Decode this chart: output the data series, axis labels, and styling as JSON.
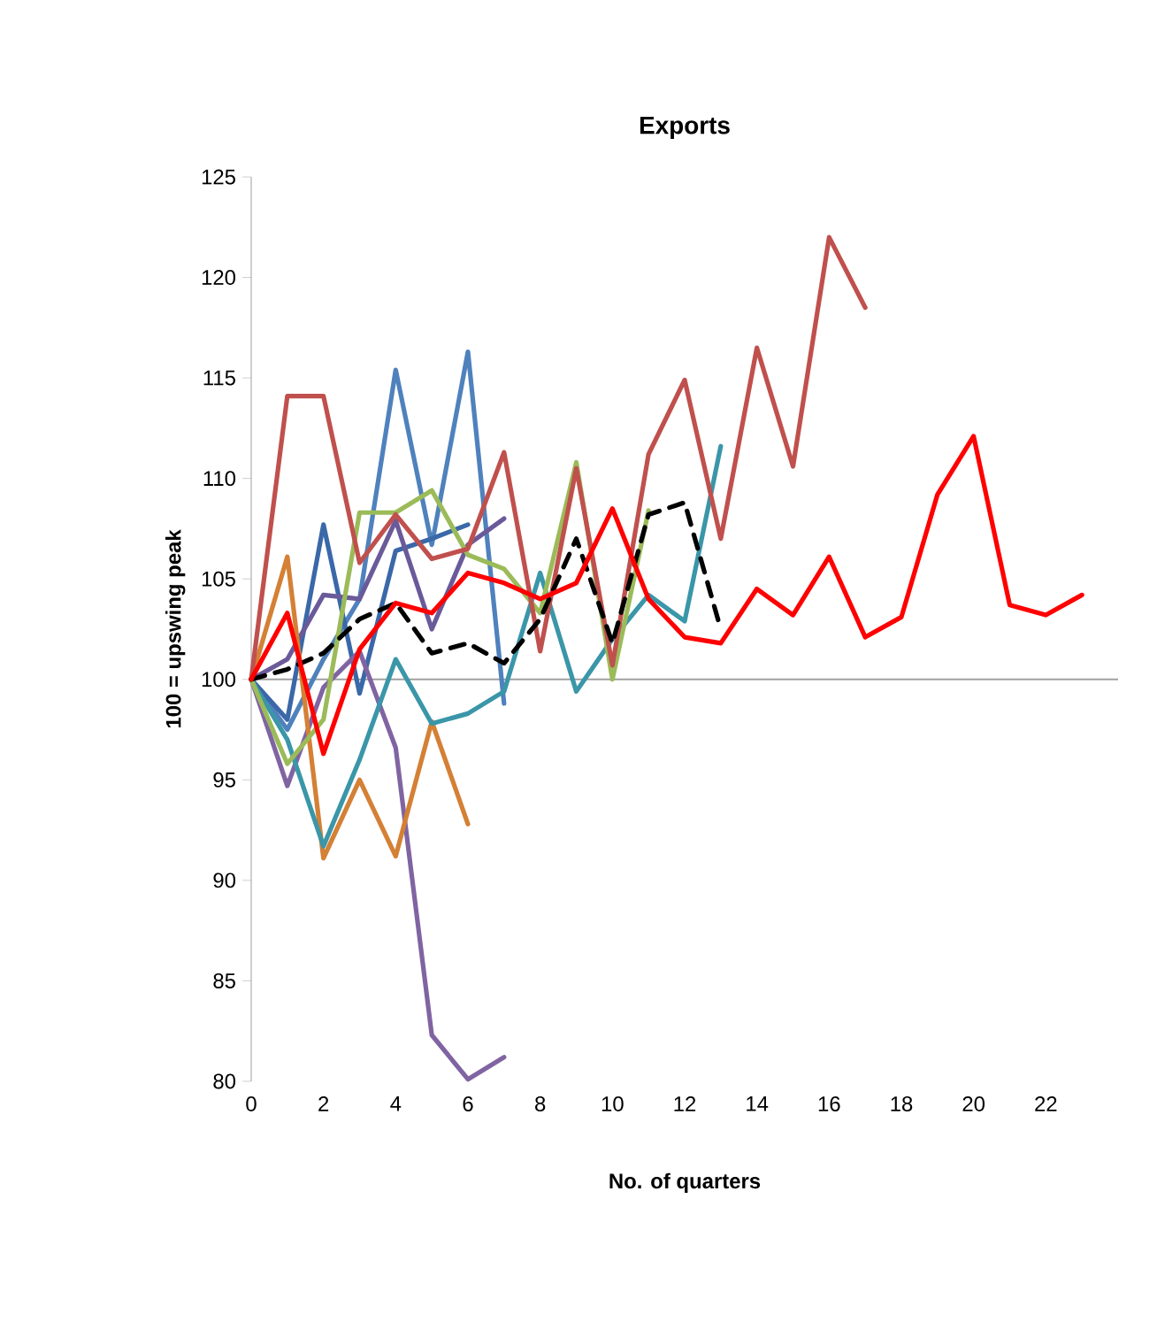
{
  "chart_data": {
    "type": "line",
    "title": "Exports",
    "xlabel": "No. of quarters",
    "ylabel": "100 = upswing peak",
    "x": [
      0,
      1,
      2,
      3,
      4,
      5,
      6,
      7,
      8,
      9,
      10,
      11,
      12,
      13,
      14,
      15,
      16,
      17,
      18,
      19,
      20,
      21,
      22,
      23
    ],
    "xlim": [
      0,
      24
    ],
    "xticks": [
      0,
      2,
      4,
      6,
      8,
      10,
      12,
      14,
      16,
      18,
      20,
      22
    ],
    "ylim": [
      80,
      125
    ],
    "yticks": [
      80,
      85,
      90,
      95,
      100,
      105,
      110,
      115,
      120,
      125
    ],
    "ref_lines": [
      {
        "axis": "y",
        "value": 100,
        "color": "#a0a0a0"
      }
    ],
    "series": [
      {
        "color": "#4f81bd",
        "values": [
          100,
          97.5,
          101,
          104,
          115.4,
          106.7,
          116.3,
          98.8,
          null,
          null,
          null,
          null,
          null,
          null,
          null,
          null,
          null,
          null,
          null,
          null,
          null,
          null,
          null,
          null
        ]
      },
      {
        "color": "#3a68a8",
        "values": [
          100,
          98,
          107.7,
          99.3,
          106.4,
          107,
          107.7,
          null,
          null,
          null,
          null,
          null,
          null,
          null,
          null,
          null,
          null,
          null,
          null,
          null,
          null,
          null,
          null,
          null
        ]
      },
      {
        "color": "#6a5a9a",
        "values": [
          100,
          101,
          104.2,
          104,
          107.9,
          102.5,
          106.7,
          108,
          null,
          null,
          null,
          null,
          null,
          null,
          null,
          null,
          null,
          null,
          null,
          null,
          null,
          null,
          null,
          null
        ]
      },
      {
        "color": "#8064a2",
        "values": [
          100,
          94.7,
          99.6,
          101.4,
          96.6,
          82.3,
          80.1,
          81.2,
          null,
          null,
          null,
          null,
          null,
          null,
          null,
          null,
          null,
          null,
          null,
          null,
          null,
          null,
          null,
          null
        ]
      },
      {
        "color": "#d48035",
        "values": [
          100,
          106.1,
          91.1,
          95,
          91.2,
          97.9,
          92.8,
          null,
          null,
          null,
          null,
          null,
          null,
          null,
          null,
          null,
          null,
          null,
          null,
          null,
          null,
          null,
          null,
          null
        ]
      },
      {
        "color": "#3a96a8",
        "values": [
          100,
          97,
          91.7,
          96,
          101,
          97.8,
          98.3,
          99.4,
          105.3,
          99.4,
          102,
          104.2,
          102.9,
          111.6,
          null,
          null,
          null,
          null,
          null,
          null,
          null,
          null,
          null,
          null
        ]
      },
      {
        "color": "#9bbb59",
        "values": [
          100,
          95.8,
          98,
          108.3,
          108.3,
          109.4,
          106.2,
          105.5,
          103.3,
          110.8,
          100,
          108.4,
          null,
          null,
          null,
          null,
          null,
          null,
          null,
          null,
          null,
          null,
          null,
          null
        ]
      },
      {
        "color": "#c0504d",
        "values": [
          100,
          114.1,
          114.1,
          105.8,
          108.2,
          106,
          106.5,
          111.3,
          101.4,
          110.5,
          100.7,
          111.2,
          114.9,
          107,
          116.5,
          110.6,
          122,
          118.5,
          null,
          null,
          null,
          null,
          null,
          null
        ]
      },
      {
        "color": "#000000",
        "line_style": "dashed",
        "values": [
          100,
          100.5,
          101.3,
          103,
          103.8,
          101.3,
          101.8,
          100.8,
          103,
          107,
          101.8,
          108.2,
          108.8,
          102.5,
          null,
          null,
          null,
          null,
          null,
          null,
          null,
          null,
          null,
          null
        ]
      },
      {
        "color": "#ff0000",
        "values": [
          100,
          103.3,
          96.3,
          101.5,
          103.8,
          103.3,
          105.3,
          104.8,
          104,
          104.8,
          108.5,
          104,
          102.1,
          101.8,
          104.5,
          103.2,
          106.1,
          102.1,
          103.1,
          109.2,
          112.1,
          103.7,
          103.2,
          104.2
        ]
      }
    ]
  }
}
